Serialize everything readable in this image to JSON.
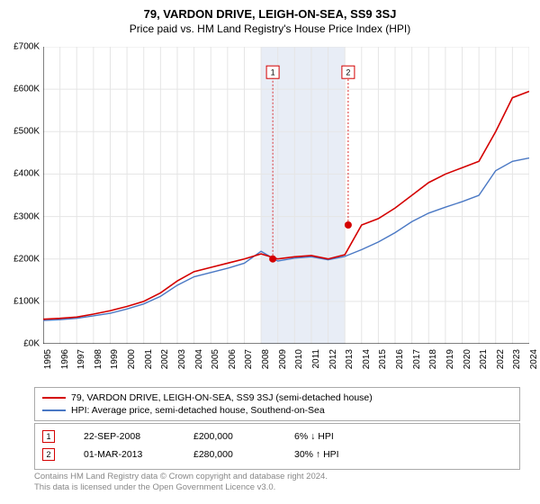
{
  "title": "79, VARDON DRIVE, LEIGH-ON-SEA, SS9 3SJ",
  "subtitle": "Price paid vs. HM Land Registry's House Price Index (HPI)",
  "chart": {
    "type": "line",
    "background_color": "#ffffff",
    "grid_color": "#e5e5e5",
    "axis_color": "#000000",
    "band_color": "#e8edf6",
    "ylim": [
      0,
      700000
    ],
    "ytick_step": 100000,
    "ytick_labels": [
      "£0K",
      "£100K",
      "£200K",
      "£300K",
      "£400K",
      "£500K",
      "£600K",
      "£700K"
    ],
    "x_years": [
      1995,
      1996,
      1997,
      1998,
      1999,
      2000,
      2001,
      2002,
      2003,
      2004,
      2005,
      2006,
      2007,
      2008,
      2009,
      2010,
      2011,
      2012,
      2013,
      2014,
      2015,
      2016,
      2017,
      2018,
      2019,
      2020,
      2021,
      2022,
      2023,
      2024
    ],
    "band_range": [
      2008,
      2013
    ],
    "series": [
      {
        "name": "property",
        "label": "79, VARDON DRIVE, LEIGH-ON-SEA, SS9 3SJ (semi-detached house)",
        "color": "#d40000",
        "line_width": 1.6,
        "values": [
          58000,
          60000,
          63000,
          70000,
          78000,
          88000,
          100000,
          120000,
          148000,
          170000,
          180000,
          190000,
          200000,
          212000,
          200000,
          205000,
          208000,
          200000,
          210000,
          280000,
          295000,
          320000,
          350000,
          380000,
          400000,
          415000,
          430000,
          500000,
          580000,
          595000
        ]
      },
      {
        "name": "hpi",
        "label": "HPI: Average price, semi-detached house, Southend-on-Sea",
        "color": "#4a78c4",
        "line_width": 1.4,
        "values": [
          55000,
          57000,
          60000,
          66000,
          72000,
          82000,
          94000,
          112000,
          138000,
          158000,
          168000,
          178000,
          190000,
          218000,
          195000,
          202000,
          205000,
          198000,
          206000,
          222000,
          240000,
          262000,
          288000,
          308000,
          322000,
          335000,
          350000,
          408000,
          430000,
          438000
        ]
      }
    ],
    "markers": [
      {
        "n": "1",
        "year": 2008.7,
        "value": 200000,
        "color": "#d40000",
        "label_y": 655000
      },
      {
        "n": "2",
        "year": 2013.2,
        "value": 280000,
        "color": "#d40000",
        "label_y": 655000
      }
    ],
    "series_label_fontsize": 10.5
  },
  "sales": [
    {
      "n": "1",
      "date": "22-SEP-2008",
      "price": "£200,000",
      "delta": "6% ↓ HPI",
      "border": "#d40000",
      "text": "#000000"
    },
    {
      "n": "2",
      "date": "01-MAR-2013",
      "price": "£280,000",
      "delta": "30% ↑ HPI",
      "border": "#d40000",
      "text": "#000000"
    }
  ],
  "footer": {
    "line1": "Contains HM Land Registry data © Crown copyright and database right 2024.",
    "line2": "This data is licensed under the Open Government Licence v3.0."
  }
}
